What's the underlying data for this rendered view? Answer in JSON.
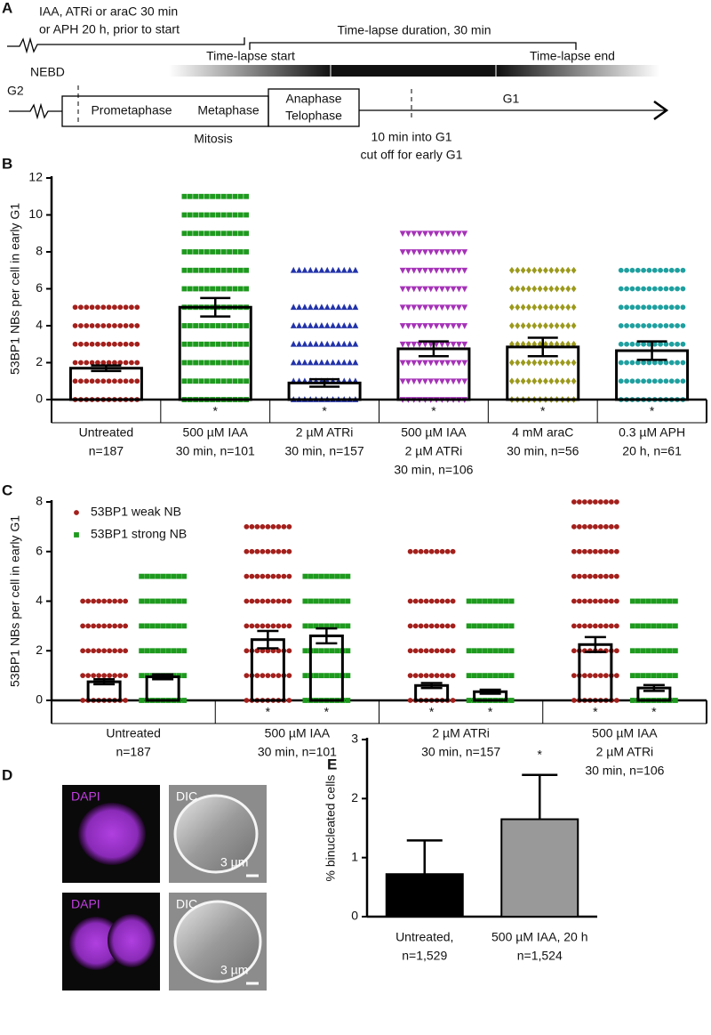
{
  "diagram": {
    "label": "A",
    "pretreatment": [
      "IAA, ATRi or araC 30 min",
      "or APH 20 h, prior to start"
    ],
    "duration": "Time-lapse duration, 30 min",
    "start": "Time-lapse start",
    "end": "Time-lapse end",
    "nebd": "NEBD",
    "g2": "G2",
    "prometaphase": "Prometaphase",
    "metaphase": "Metaphase",
    "anaphase": "Anaphase",
    "telophase": "Telophase",
    "mitosis": "Mitosis",
    "g1": "G1",
    "cutoff": [
      "10 min into G1",
      "cut off for early G1"
    ]
  },
  "images": {
    "label": "D",
    "rows": [
      {
        "stain": "DAPI",
        "dic": "DIC",
        "scale": "3 µm"
      },
      {
        "stain": "DAPI",
        "dic": "DIC",
        "scale": "3 µm"
      }
    ]
  },
  "chart_data": [
    {
      "type": "dot-bar",
      "label": "B",
      "ylabel": "53BP1 NBs per cell in early G1",
      "categories": [
        [
          "Untreated",
          "n=187"
        ],
        [
          "500 µM IAA",
          "30 min, n=101"
        ],
        [
          "2 µM ATRi",
          "30 min, n=157"
        ],
        [
          "500 µM IAA",
          "2 µM ATRi",
          "30 min, n=106"
        ],
        [
          "4 mM araC",
          "30 min, n=56"
        ],
        [
          "0.3 µM APH",
          "20 h, n=61"
        ]
      ],
      "values": [
        1.7,
        5.0,
        0.9,
        2.75,
        2.85,
        2.65
      ],
      "errors": [
        0.15,
        0.5,
        0.2,
        0.4,
        0.5,
        0.5
      ],
      "levels": [
        [
          0,
          1,
          2,
          3,
          4,
          5
        ],
        [
          0,
          1,
          2,
          3,
          4,
          5,
          6,
          7,
          8,
          9,
          10,
          11
        ],
        [
          0,
          1,
          2,
          3,
          4,
          5,
          7
        ],
        [
          0,
          1,
          2,
          3,
          4,
          5,
          6,
          7,
          8,
          9
        ],
        [
          0,
          1,
          2,
          3,
          4,
          5,
          6,
          7
        ],
        [
          0,
          1,
          2,
          3,
          4,
          5,
          6,
          7
        ]
      ],
      "colors": [
        "#a3201c",
        "#1e9a1e",
        "#2233aa",
        "#a633b8",
        "#9c9a1c",
        "#1fa0a0"
      ],
      "markers": [
        "circle",
        "square",
        "triangle-up",
        "triangle-down",
        "diamond",
        "circle"
      ],
      "annotations": [
        null,
        "*",
        "*",
        "*",
        "*",
        "*"
      ],
      "ylim": [
        0,
        12
      ],
      "yticks": [
        0,
        2,
        4,
        6,
        8,
        10,
        12
      ]
    },
    {
      "type": "grouped-dot-bar",
      "label": "C",
      "ylabel": "53BP1 NBs per cell in early G1",
      "categories": [
        [
          "Untreated",
          "n=187"
        ],
        [
          "500 µM IAA",
          "30 min, n=101"
        ],
        [
          "2 µM ATRi",
          "30 min, n=157"
        ],
        [
          "500 µM IAA",
          "2 µM ATRi",
          "30 min, n=106"
        ]
      ],
      "series": [
        {
          "name": "53BP1 weak NB",
          "color": "#a3201c",
          "marker": "circle",
          "values": [
            0.75,
            2.45,
            0.6,
            2.25
          ],
          "errors": [
            0.1,
            0.35,
            0.1,
            0.3
          ],
          "levels": [
            [
              0,
              1,
              2,
              3,
              4
            ],
            [
              0,
              1,
              2,
              3,
              4,
              5,
              6,
              7
            ],
            [
              0,
              1,
              2,
              3,
              4,
              6
            ],
            [
              0,
              1,
              2,
              3,
              4,
              5,
              6,
              7,
              8
            ]
          ],
          "annotations": [
            null,
            "*",
            "*",
            "*"
          ]
        },
        {
          "name": "53BP1 strong NB",
          "color": "#1e9a1e",
          "marker": "square",
          "values": [
            0.95,
            2.6,
            0.35,
            0.5
          ],
          "errors": [
            0.1,
            0.3,
            0.08,
            0.12
          ],
          "levels": [
            [
              0,
              1,
              2,
              3,
              4,
              5
            ],
            [
              0,
              1,
              2,
              3,
              4,
              5
            ],
            [
              0,
              1,
              2,
              3,
              4
            ],
            [
              0,
              1,
              2,
              3,
              4
            ]
          ],
          "annotations": [
            null,
            "*",
            "*",
            "*"
          ]
        }
      ],
      "legend": "top-left",
      "ylim": [
        0,
        8
      ],
      "yticks": [
        0,
        2,
        4,
        6,
        8
      ]
    },
    {
      "type": "bar",
      "label": "E",
      "ylabel": "% binucleated cells",
      "categories": [
        [
          "Untreated,",
          "n=1,529"
        ],
        [
          "500 µM IAA, 20 h",
          "n=1,524"
        ]
      ],
      "values": [
        0.72,
        1.65
      ],
      "errors": [
        0.57,
        0.75
      ],
      "colors": [
        "#000000",
        "#999999"
      ],
      "annotations": [
        null,
        "*"
      ],
      "ylim": [
        0,
        3
      ],
      "yticks": [
        0,
        1,
        2,
        3
      ]
    }
  ]
}
